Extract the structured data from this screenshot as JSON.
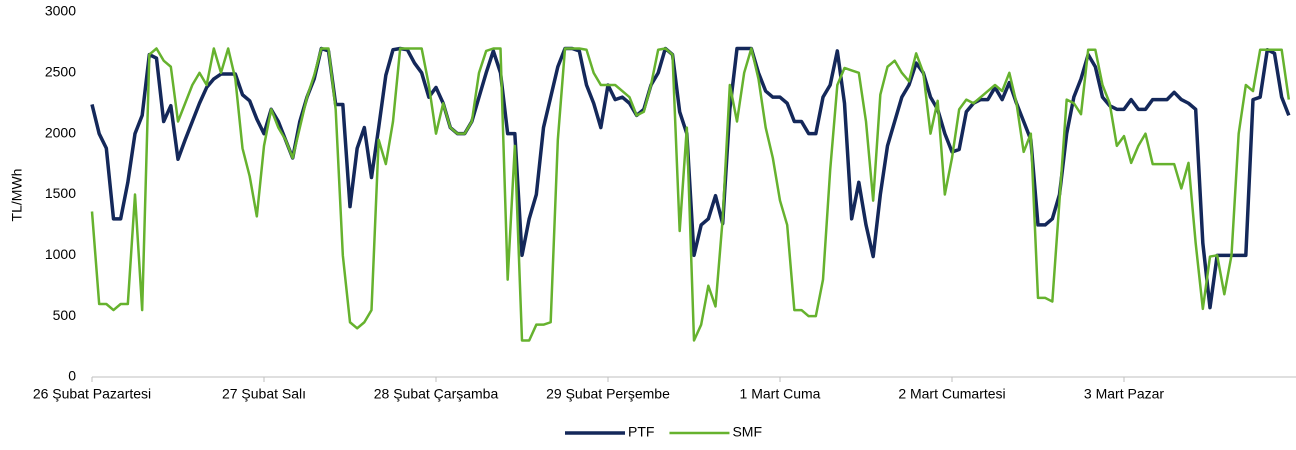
{
  "chart_data": {
    "type": "line",
    "y_label": "TL/MWh",
    "categories": [
      "26 Şubat Pazartesi",
      null,
      null,
      null,
      null,
      null,
      null,
      null,
      null,
      null,
      null,
      null,
      null,
      null,
      null,
      null,
      null,
      null,
      null,
      null,
      null,
      null,
      null,
      null,
      "27 Şubat Salı",
      null,
      null,
      null,
      null,
      null,
      null,
      null,
      null,
      null,
      null,
      null,
      null,
      null,
      null,
      null,
      null,
      null,
      null,
      null,
      null,
      null,
      null,
      null,
      "28 Şubat Çarşamba",
      null,
      null,
      null,
      null,
      null,
      null,
      null,
      null,
      null,
      null,
      null,
      null,
      null,
      null,
      null,
      null,
      null,
      null,
      null,
      null,
      null,
      null,
      null,
      "29 Şubat Perşembe",
      null,
      null,
      null,
      null,
      null,
      null,
      null,
      null,
      null,
      null,
      null,
      null,
      null,
      null,
      null,
      null,
      null,
      null,
      null,
      null,
      null,
      null,
      null,
      "1 Mart Cuma",
      null,
      null,
      null,
      null,
      null,
      null,
      null,
      null,
      null,
      null,
      null,
      null,
      null,
      null,
      null,
      null,
      null,
      null,
      null,
      null,
      null,
      null,
      null,
      "2 Mart Cumartesi",
      null,
      null,
      null,
      null,
      null,
      null,
      null,
      null,
      null,
      null,
      null,
      null,
      null,
      null,
      null,
      null,
      null,
      null,
      null,
      null,
      null,
      null,
      null,
      "3 Mart Pazar",
      null,
      null,
      null,
      null,
      null,
      null,
      null,
      null,
      null,
      null,
      null,
      null,
      null,
      null,
      null,
      null,
      null,
      null,
      null,
      null,
      null,
      null,
      null
    ],
    "series": [
      {
        "name": "PTF",
        "color": "#14285a",
        "values": [
          2240,
          2000,
          1880,
          1300,
          1300,
          1600,
          2000,
          2150,
          2650,
          2620,
          2100,
          2230,
          1790,
          1950,
          2100,
          2250,
          2380,
          2450,
          2490,
          2490,
          2490,
          2320,
          2270,
          2120,
          2000,
          2200,
          2100,
          1950,
          1800,
          2100,
          2300,
          2450,
          2700,
          2680,
          2240,
          2240,
          1400,
          1880,
          2050,
          1640,
          2050,
          2480,
          2690,
          2700,
          2690,
          2580,
          2500,
          2300,
          2380,
          2250,
          2050,
          2000,
          2000,
          2100,
          2300,
          2500,
          2680,
          2500,
          2000,
          2000,
          1000,
          1300,
          1500,
          2050,
          2300,
          2550,
          2700,
          2700,
          2680,
          2400,
          2250,
          2050,
          2400,
          2280,
          2300,
          2250,
          2150,
          2200,
          2400,
          2500,
          2700,
          2650,
          2180,
          2000,
          1000,
          1250,
          1300,
          1490,
          1260,
          2200,
          2700,
          2700,
          2700,
          2500,
          2350,
          2300,
          2300,
          2250,
          2100,
          2100,
          2000,
          2000,
          2300,
          2400,
          2680,
          2250,
          1300,
          1600,
          1250,
          990,
          1500,
          1900,
          2100,
          2300,
          2400,
          2580,
          2500,
          2300,
          2200,
          2000,
          1850,
          1870,
          2180,
          2250,
          2280,
          2280,
          2380,
          2280,
          2420,
          2250,
          2100,
          1950,
          1250,
          1250,
          1300,
          1500,
          2000,
          2300,
          2450,
          2650,
          2550,
          2300,
          2230,
          2200,
          2200,
          2280,
          2200,
          2200,
          2280,
          2280,
          2280,
          2340,
          2280,
          2250,
          2200,
          1100,
          570,
          1000,
          1000,
          1000,
          1000,
          1000,
          2280,
          2300,
          2690,
          2660,
          2300,
          2150
        ]
      },
      {
        "name": "SMF",
        "color": "#66b22e",
        "values": [
          1360,
          600,
          600,
          550,
          600,
          600,
          1500,
          550,
          2650,
          2700,
          2600,
          2550,
          2100,
          2250,
          2400,
          2500,
          2400,
          2700,
          2500,
          2700,
          2450,
          1880,
          1650,
          1320,
          1900,
          2200,
          2050,
          1950,
          1800,
          2050,
          2300,
          2480,
          2700,
          2700,
          2200,
          1000,
          450,
          400,
          450,
          550,
          1950,
          1750,
          2100,
          2700,
          2700,
          2700,
          2700,
          2400,
          2000,
          2250,
          2050,
          2000,
          2000,
          2100,
          2500,
          2680,
          2700,
          2700,
          800,
          1900,
          300,
          300,
          430,
          430,
          450,
          1950,
          2700,
          2700,
          2700,
          2690,
          2500,
          2400,
          2400,
          2400,
          2350,
          2300,
          2150,
          2180,
          2400,
          2690,
          2700,
          2650,
          1200,
          2050,
          300,
          430,
          750,
          580,
          1300,
          2400,
          2100,
          2500,
          2700,
          2450,
          2050,
          1800,
          1450,
          1250,
          550,
          550,
          500,
          500,
          800,
          1700,
          2400,
          2540,
          2520,
          2500,
          2100,
          1450,
          2320,
          2550,
          2600,
          2500,
          2430,
          2660,
          2500,
          2000,
          2270,
          1500,
          1800,
          2200,
          2280,
          2250,
          2300,
          2350,
          2400,
          2350,
          2500,
          2250,
          1850,
          2000,
          650,
          650,
          620,
          1450,
          2280,
          2250,
          2160,
          2690,
          2690,
          2400,
          2250,
          1900,
          1980,
          1760,
          1900,
          2000,
          1750,
          1750,
          1750,
          1750,
          1550,
          1760,
          1100,
          560,
          990,
          1000,
          680,
          1000,
          2000,
          2400,
          2350,
          2690,
          2690,
          2690,
          2690,
          2280
        ]
      }
    ],
    "ylim": [
      0,
      3000
    ],
    "yticks": [
      0,
      500,
      1000,
      1500,
      2000,
      2500,
      3000
    ],
    "grid": false,
    "legend": "bottom"
  }
}
